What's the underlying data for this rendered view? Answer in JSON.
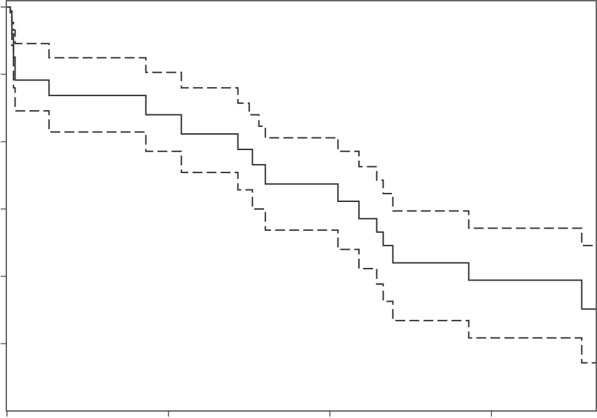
{
  "chart_data": {
    "type": "line",
    "step": true,
    "title": "",
    "xlabel": "",
    "ylabel": "",
    "xlim": [
      0,
      36.5
    ],
    "ylim": [
      0,
      1.05
    ],
    "xticks": [
      0,
      10,
      20,
      30
    ],
    "yticks": [
      0.175,
      0.35,
      0.525,
      0.7,
      0.875,
      1.05
    ],
    "colors": {
      "estimate": "#333333",
      "band": "#333333"
    },
    "series": [
      {
        "role": "estimate",
        "style": "solid",
        "points": [
          [
            0,
            1.05
          ],
          [
            0.2,
            1.04
          ],
          [
            0.3,
            0.98
          ],
          [
            0.4,
            0.92
          ],
          [
            0.5,
            0.86
          ],
          [
            2.6,
            0.82
          ],
          [
            8.6,
            0.77
          ],
          [
            10.8,
            0.72
          ],
          [
            14.3,
            0.68
          ],
          [
            15.2,
            0.64
          ],
          [
            16.0,
            0.59
          ],
          [
            20.5,
            0.545
          ],
          [
            21.8,
            0.5
          ],
          [
            22.9,
            0.465
          ],
          [
            23.3,
            0.43
          ],
          [
            23.9,
            0.385
          ],
          [
            28.6,
            0.34
          ],
          [
            35.6,
            0.265
          ],
          [
            36.5,
            0.265
          ]
        ]
      },
      {
        "role": "upper-band",
        "style": "dashed",
        "points": [
          [
            0,
            1.05
          ],
          [
            0.2,
            1.04
          ],
          [
            0.3,
            1.01
          ],
          [
            0.4,
            0.99
          ],
          [
            0.5,
            0.955
          ],
          [
            2.6,
            0.918
          ],
          [
            8.6,
            0.88
          ],
          [
            10.8,
            0.84
          ],
          [
            14.3,
            0.8
          ],
          [
            15.0,
            0.77
          ],
          [
            15.6,
            0.74
          ],
          [
            16.0,
            0.71
          ],
          [
            20.5,
            0.675
          ],
          [
            21.8,
            0.635
          ],
          [
            22.9,
            0.6
          ],
          [
            23.3,
            0.565
          ],
          [
            23.9,
            0.52
          ],
          [
            28.6,
            0.475
          ],
          [
            35.6,
            0.43
          ],
          [
            36.5,
            0.43
          ]
        ]
      },
      {
        "role": "lower-band",
        "style": "dashed",
        "points": [
          [
            0,
            1.05
          ],
          [
            0.2,
            1.035
          ],
          [
            0.3,
            0.95
          ],
          [
            0.4,
            0.84
          ],
          [
            0.5,
            0.78
          ],
          [
            2.6,
            0.725
          ],
          [
            8.6,
            0.675
          ],
          [
            10.8,
            0.62
          ],
          [
            14.3,
            0.575
          ],
          [
            15.2,
            0.525
          ],
          [
            16.0,
            0.47
          ],
          [
            20.5,
            0.42
          ],
          [
            21.8,
            0.37
          ],
          [
            22.9,
            0.33
          ],
          [
            23.3,
            0.285
          ],
          [
            23.9,
            0.235
          ],
          [
            28.6,
            0.19
          ],
          [
            35.6,
            0.125
          ],
          [
            36.5,
            0.125
          ]
        ]
      }
    ]
  }
}
